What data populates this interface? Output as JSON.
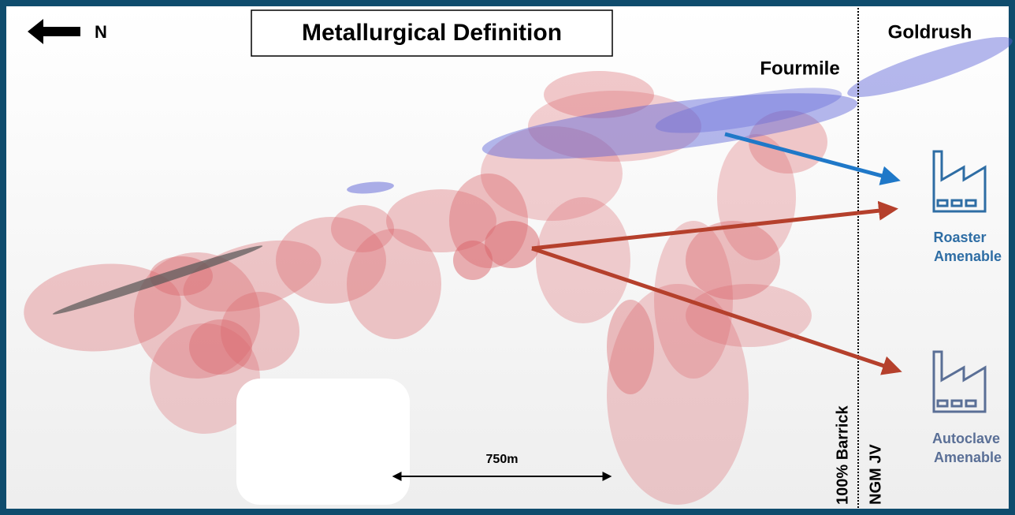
{
  "header": {
    "direction": "N",
    "title": "Metallurgical Definition"
  },
  "deposits": {
    "goldrush": "Goldrush",
    "fourmile": "Fourmile"
  },
  "zones": {
    "left": "100% Barrick",
    "right": "NGM JV"
  },
  "plants": [
    {
      "lines": [
        "Roaster",
        "Amenable"
      ]
    },
    {
      "lines": [
        "Autoclave",
        "Amenable"
      ]
    }
  ],
  "scale": {
    "label": "750m"
  }
}
